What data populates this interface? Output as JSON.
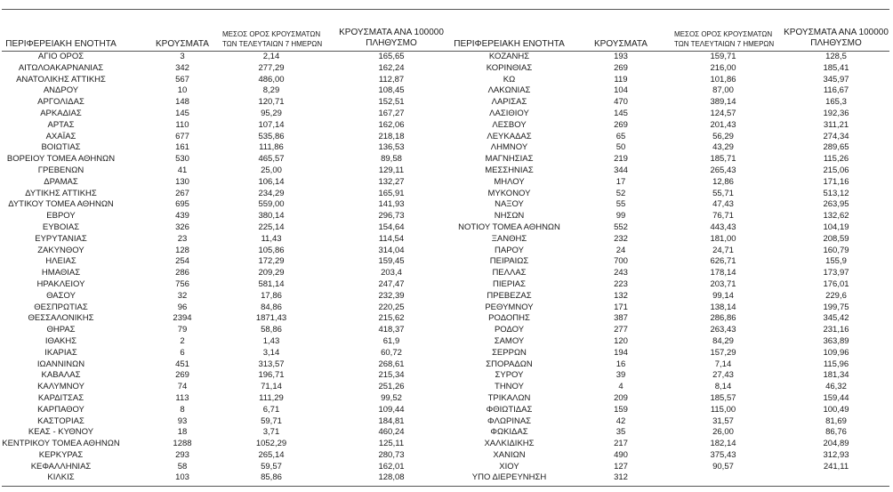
{
  "headers": {
    "region": "ΠΕΡΙΦΕΡΕΙΑΚΗ ΕΝΟΤΗΤΑ",
    "cases": "ΚΡΟΥΣΜΑΤΑ",
    "avg_line1": "ΜΕΣΟΣ ΟΡΟΣ ΚΡΟΥΣΜΑΤΩΝ",
    "avg_line2": "ΤΩΝ ΤΕΛΕΥΤΑΙΩΝ 7 ΗΜΕΡΩΝ",
    "per100k_line1": "ΚΡΟΥΣΜΑΤΑ ΑΝΑ 100000",
    "per100k_line2": "ΠΛΗΘΥΣΜΟ"
  },
  "left_rows": [
    [
      "ΑΓΙΟ ΟΡΟΣ",
      "3",
      "2,14",
      "165,65"
    ],
    [
      "ΑΙΤΩΛΟΑΚΑΡΝΑΝΙΑΣ",
      "342",
      "277,29",
      "162,24"
    ],
    [
      "ΑΝΑΤΟΛΙΚΗΣ ΑΤΤΙΚΗΣ",
      "567",
      "486,00",
      "112,87"
    ],
    [
      "ΑΝΔΡΟΥ",
      "10",
      "8,29",
      "108,45"
    ],
    [
      "ΑΡΓΟΛΙΔΑΣ",
      "148",
      "120,71",
      "152,51"
    ],
    [
      "ΑΡΚΑΔΙΑΣ",
      "145",
      "95,29",
      "167,27"
    ],
    [
      "ΑΡΤΑΣ",
      "110",
      "107,14",
      "162,06"
    ],
    [
      "ΑΧΑΪΑΣ",
      "677",
      "535,86",
      "218,18"
    ],
    [
      "ΒΟΙΩΤΙΑΣ",
      "161",
      "111,86",
      "136,53"
    ],
    [
      "ΒΟΡΕΙΟΥ ΤΟΜΕΑ ΑΘΗΝΩΝ",
      "530",
      "465,57",
      "89,58"
    ],
    [
      "ΓΡΕΒΕΝΩΝ",
      "41",
      "25,00",
      "129,11"
    ],
    [
      "ΔΡΑΜΑΣ",
      "130",
      "106,14",
      "132,27"
    ],
    [
      "ΔΥΤΙΚΗΣ ΑΤΤΙΚΗΣ",
      "267",
      "234,29",
      "165,91"
    ],
    [
      "ΔΥΤΙΚΟΥ ΤΟΜΕΑ ΑΘΗΝΩΝ",
      "695",
      "559,00",
      "141,93"
    ],
    [
      "ΕΒΡΟΥ",
      "439",
      "380,14",
      "296,73"
    ],
    [
      "ΕΥΒΟΙΑΣ",
      "326",
      "225,14",
      "154,64"
    ],
    [
      "ΕΥΡΥΤΑΝΙΑΣ",
      "23",
      "11,43",
      "114,54"
    ],
    [
      "ΖΑΚΥΝΘΟΥ",
      "128",
      "105,86",
      "314,04"
    ],
    [
      "ΗΛΕΙΑΣ",
      "254",
      "172,29",
      "159,45"
    ],
    [
      "ΗΜΑΘΙΑΣ",
      "286",
      "209,29",
      "203,4"
    ],
    [
      "ΗΡΑΚΛΕΙΟΥ",
      "756",
      "581,14",
      "247,47"
    ],
    [
      "ΘΑΣΟΥ",
      "32",
      "17,86",
      "232,39"
    ],
    [
      "ΘΕΣΠΡΩΤΙΑΣ",
      "96",
      "84,86",
      "220,25"
    ],
    [
      "ΘΕΣΣΑΛΟΝΙΚΗΣ",
      "2394",
      "1871,43",
      "215,62"
    ],
    [
      "ΘΗΡΑΣ",
      "79",
      "58,86",
      "418,37"
    ],
    [
      "ΙΘΑΚΗΣ",
      "2",
      "1,43",
      "61,9"
    ],
    [
      "ΙΚΑΡΙΑΣ",
      "6",
      "3,14",
      "60,72"
    ],
    [
      "ΙΩΑΝΝΙΝΩΝ",
      "451",
      "313,57",
      "268,61"
    ],
    [
      "ΚΑΒΑΛΑΣ",
      "269",
      "196,71",
      "215,34"
    ],
    [
      "ΚΑΛΥΜΝΟΥ",
      "74",
      "71,14",
      "251,26"
    ],
    [
      "ΚΑΡΔΙΤΣΑΣ",
      "113",
      "111,29",
      "99,52"
    ],
    [
      "ΚΑΡΠΑΘΟΥ",
      "8",
      "6,71",
      "109,44"
    ],
    [
      "ΚΑΣΤΟΡΙΑΣ",
      "93",
      "59,71",
      "184,81"
    ],
    [
      "ΚΕΑΣ - ΚΥΘΝΟΥ",
      "18",
      "3,71",
      "460,24"
    ],
    [
      "ΚΕΝΤΡΙΚΟΥ ΤΟΜΕΑ ΑΘΗΝΩΝ",
      "1288",
      "1052,29",
      "125,11"
    ],
    [
      "ΚΕΡΚΥΡΑΣ",
      "293",
      "265,14",
      "280,73"
    ],
    [
      "ΚΕΦΑΛΛΗΝΙΑΣ",
      "58",
      "59,57",
      "162,01"
    ],
    [
      "ΚΙΛΚΙΣ",
      "103",
      "85,86",
      "128,08"
    ]
  ],
  "right_rows": [
    [
      "ΚΟΖΑΝΗΣ",
      "193",
      "159,71",
      "128,5"
    ],
    [
      "ΚΟΡΙΝΘΙΑΣ",
      "269",
      "216,00",
      "185,41"
    ],
    [
      "ΚΩ",
      "119",
      "101,86",
      "345,97"
    ],
    [
      "ΛΑΚΩΝΙΑΣ",
      "104",
      "87,00",
      "116,67"
    ],
    [
      "ΛΑΡΙΣΑΣ",
      "470",
      "389,14",
      "165,3"
    ],
    [
      "ΛΑΣΙΘΙΟΥ",
      "145",
      "124,57",
      "192,36"
    ],
    [
      "ΛΕΣΒΟΥ",
      "269",
      "201,43",
      "311,21"
    ],
    [
      "ΛΕΥΚΑΔΑΣ",
      "65",
      "56,29",
      "274,34"
    ],
    [
      "ΛΗΜΝΟΥ",
      "50",
      "43,29",
      "289,65"
    ],
    [
      "ΜΑΓΝΗΣΙΑΣ",
      "219",
      "185,71",
      "115,26"
    ],
    [
      "ΜΕΣΣΗΝΙΑΣ",
      "344",
      "265,43",
      "215,06"
    ],
    [
      "ΜΗΛΟΥ",
      "17",
      "12,86",
      "171,16"
    ],
    [
      "ΜΥΚΟΝΟΥ",
      "52",
      "55,71",
      "513,12"
    ],
    [
      "ΝΑΞΟΥ",
      "55",
      "47,43",
      "263,95"
    ],
    [
      "ΝΗΣΩΝ",
      "99",
      "76,71",
      "132,62"
    ],
    [
      "ΝΟΤΙΟΥ ΤΟΜΕΑ ΑΘΗΝΩΝ",
      "552",
      "443,43",
      "104,19"
    ],
    [
      "ΞΑΝΘΗΣ",
      "232",
      "181,00",
      "208,59"
    ],
    [
      "ΠΑΡΟΥ",
      "24",
      "24,71",
      "160,79"
    ],
    [
      "ΠΕΙΡΑΙΩΣ",
      "700",
      "626,71",
      "155,9"
    ],
    [
      "ΠΕΛΛΑΣ",
      "243",
      "178,14",
      "173,97"
    ],
    [
      "ΠΙΕΡΙΑΣ",
      "223",
      "203,71",
      "176,01"
    ],
    [
      "ΠΡΕΒΕΖΑΣ",
      "132",
      "99,14",
      "229,6"
    ],
    [
      "ΡΕΘΥΜΝΟΥ",
      "171",
      "138,14",
      "199,75"
    ],
    [
      "ΡΟΔΟΠΗΣ",
      "387",
      "286,86",
      "345,42"
    ],
    [
      "ΡΟΔΟΥ",
      "277",
      "263,43",
      "231,16"
    ],
    [
      "ΣΑΜΟΥ",
      "120",
      "84,29",
      "363,89"
    ],
    [
      "ΣΕΡΡΩΝ",
      "194",
      "157,29",
      "109,96"
    ],
    [
      "ΣΠΟΡΑΔΩΝ",
      "16",
      "7,14",
      "115,96"
    ],
    [
      "ΣΥΡΟΥ",
      "39",
      "27,43",
      "181,34"
    ],
    [
      "ΤΗΝΟΥ",
      "4",
      "8,14",
      "46,32"
    ],
    [
      "ΤΡΙΚΑΛΩΝ",
      "209",
      "185,57",
      "159,44"
    ],
    [
      "ΦΘΙΩΤΙΔΑΣ",
      "159",
      "115,00",
      "100,49"
    ],
    [
      "ΦΛΩΡΙΝΑΣ",
      "42",
      "31,57",
      "81,69"
    ],
    [
      "ΦΩΚΙΔΑΣ",
      "35",
      "26,00",
      "86,76"
    ],
    [
      "ΧΑΛΚΙΔΙΚΗΣ",
      "217",
      "182,14",
      "204,89"
    ],
    [
      "ΧΑΝΙΩΝ",
      "490",
      "375,43",
      "312,93"
    ],
    [
      "ΧΙΟΥ",
      "127",
      "90,57",
      "241,11"
    ],
    [
      "ΥΠΟ ΔΙΕΡΕΥΝΗΣΗ",
      "312",
      "",
      ""
    ]
  ]
}
